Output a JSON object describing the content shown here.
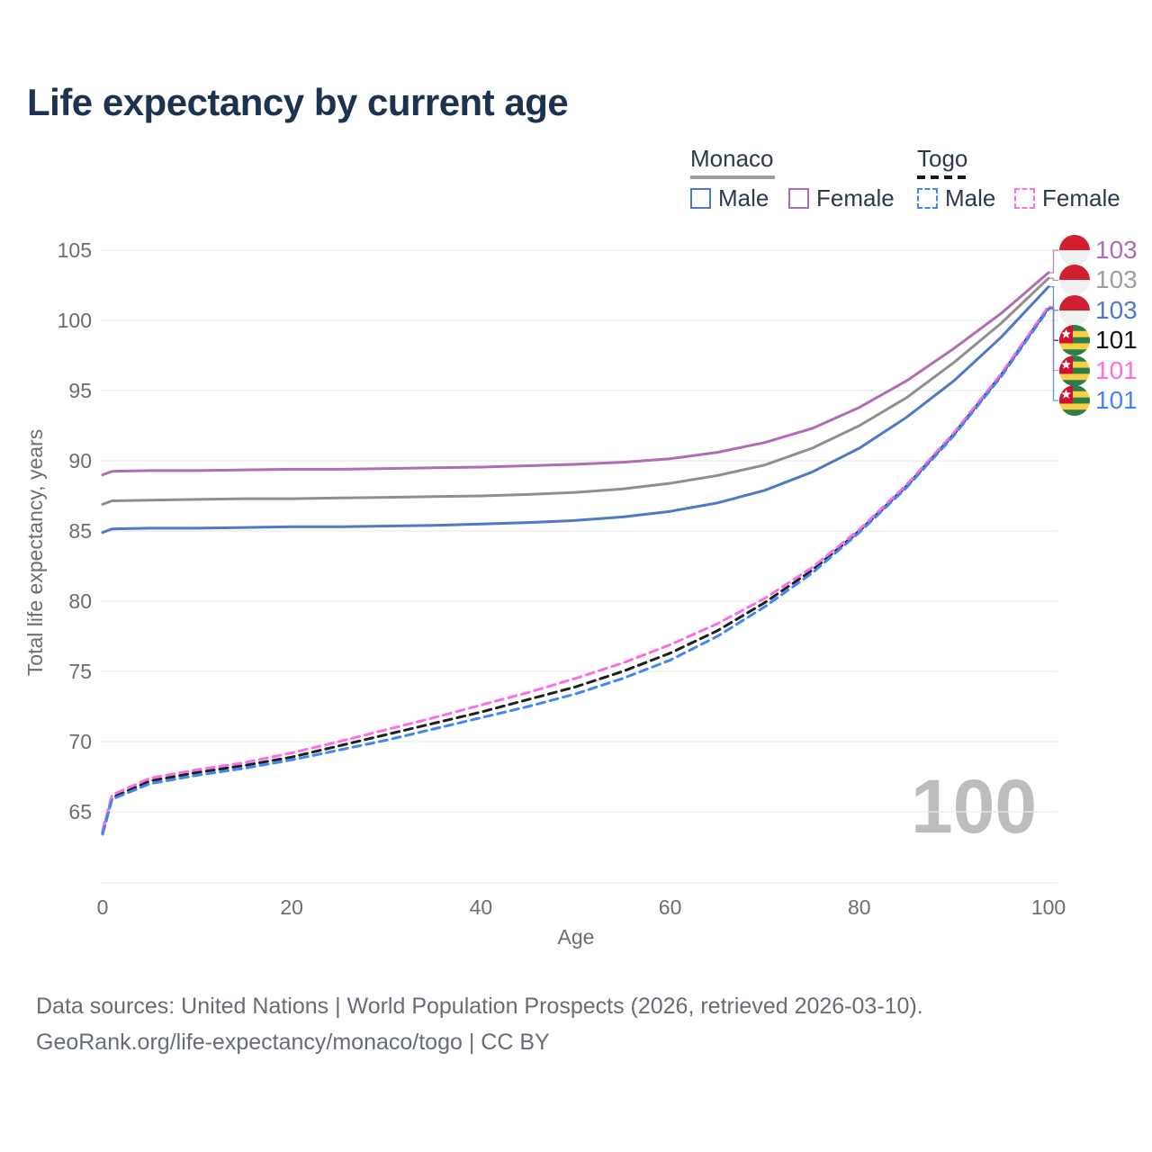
{
  "title": "Life expectancy by current age",
  "legend": {
    "groups": [
      {
        "label": "Monaco",
        "line_style": "solid",
        "underline_color": "#9e9e9e",
        "items": [
          {
            "label": "Male",
            "color": "#4d79c7"
          },
          {
            "label": "Female",
            "color": "#b16cb5"
          }
        ]
      },
      {
        "label": "Togo",
        "line_style": "dashed",
        "underline_color": "#1a1a1a",
        "items": [
          {
            "label": "Male",
            "color": "#4286f5"
          },
          {
            "label": "Female",
            "color": "#fb6ee5"
          }
        ]
      }
    ]
  },
  "watermark": "100",
  "footer": {
    "line1": "Data sources: United Nations | World Population Prospects (2026, retrieved 2026-03-10).",
    "line2": "GeoRank.org/life-expectancy/monaco/togo | CC BY"
  },
  "chart_data": {
    "type": "line",
    "title": "Life expectancy by current age",
    "xlabel": "Age",
    "ylabel": "Total life expectancy, years",
    "xlim": [
      0,
      100
    ],
    "ylim": [
      63,
      105.5
    ],
    "xticks": [
      0,
      20,
      40,
      60,
      80,
      100
    ],
    "yticks": [
      65,
      70,
      75,
      80,
      85,
      90,
      95,
      100,
      105
    ],
    "grid": "horizontal",
    "legend_position": "top-right",
    "x": [
      0,
      1,
      5,
      10,
      15,
      20,
      25,
      30,
      35,
      40,
      45,
      50,
      55,
      60,
      65,
      70,
      75,
      80,
      85,
      90,
      95,
      100
    ],
    "series": [
      {
        "name": "Monaco Female",
        "country": "Monaco",
        "sex": "Female",
        "color": "#b16cb5",
        "dashed": false,
        "flag": "mc",
        "end_label": "103",
        "values": [
          89.0,
          89.25,
          89.3,
          89.3,
          89.35,
          89.4,
          89.4,
          89.45,
          89.5,
          89.55,
          89.65,
          89.75,
          89.9,
          90.15,
          90.6,
          91.3,
          92.3,
          93.8,
          95.7,
          98.0,
          100.5,
          103.4
        ]
      },
      {
        "name": "Monaco Both sexes",
        "country": "Monaco",
        "sex": "Both",
        "color": "#8f8f8f",
        "dashed": false,
        "flag": "mc",
        "end_label": "103",
        "label_color": "#9e9e9e",
        "values": [
          86.9,
          87.15,
          87.2,
          87.25,
          87.3,
          87.3,
          87.35,
          87.4,
          87.45,
          87.5,
          87.6,
          87.75,
          88.0,
          88.4,
          88.95,
          89.7,
          90.9,
          92.5,
          94.5,
          97.0,
          99.8,
          103.0
        ]
      },
      {
        "name": "Monaco Male",
        "country": "Monaco",
        "sex": "Male",
        "color": "#4d79c7",
        "dashed": false,
        "flag": "mc",
        "end_label": "103",
        "values": [
          84.9,
          85.15,
          85.2,
          85.2,
          85.25,
          85.3,
          85.3,
          85.35,
          85.4,
          85.5,
          85.6,
          85.75,
          86.0,
          86.4,
          87.0,
          87.9,
          89.2,
          90.9,
          93.1,
          95.7,
          98.8,
          102.4
        ]
      },
      {
        "name": "Togo Both sexes",
        "country": "Togo",
        "sex": "Both",
        "color": "#1f1f1f",
        "dashed": true,
        "flag": "tg",
        "end_label": "101",
        "label_color": "#111111",
        "values": [
          63.5,
          66.0,
          67.2,
          67.8,
          68.3,
          68.9,
          69.7,
          70.5,
          71.3,
          72.1,
          73.0,
          73.9,
          75.0,
          76.3,
          77.9,
          79.9,
          82.2,
          85.0,
          88.2,
          91.9,
          96.1,
          100.9
        ]
      },
      {
        "name": "Togo Female",
        "country": "Togo",
        "sex": "Female",
        "color": "#fb6ee5",
        "dashed": true,
        "flag": "tg",
        "end_label": "101",
        "values": [
          63.7,
          66.2,
          67.4,
          68.0,
          68.5,
          69.2,
          70.0,
          70.85,
          71.7,
          72.6,
          73.5,
          74.5,
          75.6,
          76.9,
          78.4,
          80.2,
          82.4,
          85.1,
          88.3,
          92.0,
          96.2,
          101.0
        ]
      },
      {
        "name": "Togo Male",
        "country": "Togo",
        "sex": "Male",
        "color": "#4286f5",
        "dashed": true,
        "flag": "tg",
        "end_label": "101",
        "values": [
          63.4,
          65.9,
          67.0,
          67.6,
          68.1,
          68.7,
          69.4,
          70.1,
          70.9,
          71.7,
          72.5,
          73.4,
          74.5,
          75.8,
          77.5,
          79.6,
          82.0,
          84.9,
          88.1,
          91.8,
          96.0,
          100.8
        ]
      }
    ]
  }
}
